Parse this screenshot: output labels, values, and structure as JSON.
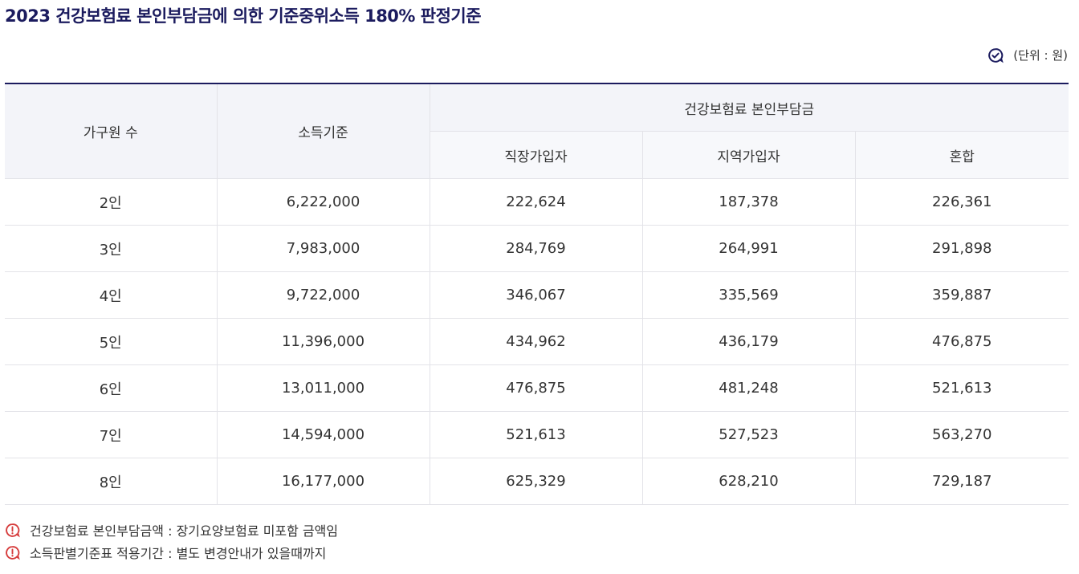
{
  "title": "2023 건강보험료 본인부담금에 의한 기준중위소득 180% 판정기준",
  "unit": "(단위 : 원)",
  "icons": {
    "unit": "check-circle-icon",
    "note": "exclamation-circle-icon"
  },
  "colors": {
    "title": "#1b1b5e",
    "header_bg": "#f3f4f9",
    "note_icon": "#d63c3c",
    "top_border": "#1b1b5e"
  },
  "table": {
    "headers": {
      "household": "가구원 수",
      "income": "소득기준",
      "premium_group": "건강보험료 본인부담금",
      "employee": "직장가입자",
      "regional": "지역가입자",
      "mixed": "혼합"
    },
    "rows": [
      {
        "household": "2인",
        "income": "6,222,000",
        "employee": "222,624",
        "regional": "187,378",
        "mixed": "226,361"
      },
      {
        "household": "3인",
        "income": "7,983,000",
        "employee": "284,769",
        "regional": "264,991",
        "mixed": "291,898"
      },
      {
        "household": "4인",
        "income": "9,722,000",
        "employee": "346,067",
        "regional": "335,569",
        "mixed": "359,887"
      },
      {
        "household": "5인",
        "income": "11,396,000",
        "employee": "434,962",
        "regional": "436,179",
        "mixed": "476,875"
      },
      {
        "household": "6인",
        "income": "13,011,000",
        "employee": "476,875",
        "regional": "481,248",
        "mixed": "521,613"
      },
      {
        "household": "7인",
        "income": "14,594,000",
        "employee": "521,613",
        "regional": "527,523",
        "mixed": "563,270"
      },
      {
        "household": "8인",
        "income": "16,177,000",
        "employee": "625,329",
        "regional": "628,210",
        "mixed": "729,187"
      }
    ]
  },
  "notes": [
    "건강보험료 본인부담금액 : 장기요양보험료 미포함 금액임",
    "소득판별기준표 적용기간 : 별도 변경안내가 있을때까지"
  ]
}
